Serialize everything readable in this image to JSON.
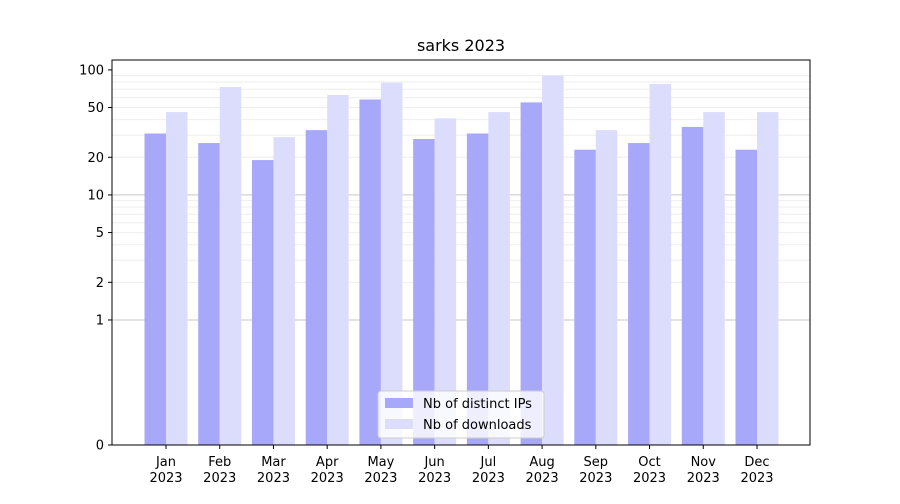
{
  "chart_data": {
    "type": "bar",
    "title": "sarks 2023",
    "xlabel": "",
    "ylabel": "",
    "y_scale": "symlog",
    "ylim": [
      0,
      120
    ],
    "y_ticks": [
      {
        "value": 0,
        "label": "0"
      },
      {
        "value": 1,
        "label": "1"
      },
      {
        "value": 2,
        "label": "2"
      },
      {
        "value": 5,
        "label": "5"
      },
      {
        "value": 10,
        "label": "10"
      },
      {
        "value": 20,
        "label": "20"
      },
      {
        "value": 50,
        "label": "50"
      },
      {
        "value": 100,
        "label": "100"
      }
    ],
    "categories": [
      {
        "month": "Jan",
        "year": "2023"
      },
      {
        "month": "Feb",
        "year": "2023"
      },
      {
        "month": "Mar",
        "year": "2023"
      },
      {
        "month": "Apr",
        "year": "2023"
      },
      {
        "month": "May",
        "year": "2023"
      },
      {
        "month": "Jun",
        "year": "2023"
      },
      {
        "month": "Jul",
        "year": "2023"
      },
      {
        "month": "Aug",
        "year": "2023"
      },
      {
        "month": "Sep",
        "year": "2023"
      },
      {
        "month": "Oct",
        "year": "2023"
      },
      {
        "month": "Nov",
        "year": "2023"
      },
      {
        "month": "Dec",
        "year": "2023"
      }
    ],
    "series": [
      {
        "name": "Nb of distinct IPs",
        "color": "#a8a8fb",
        "values": [
          31,
          26,
          19,
          33,
          58,
          28,
          31,
          55,
          23,
          26,
          35,
          23
        ]
      },
      {
        "name": "Nb of downloads",
        "color": "#dcdcfd",
        "values": [
          46,
          73,
          29,
          63,
          79,
          41,
          46,
          90,
          33,
          77,
          46,
          46
        ]
      }
    ],
    "legend_position": "bottom-center",
    "grid": "y-major-and-minor"
  }
}
